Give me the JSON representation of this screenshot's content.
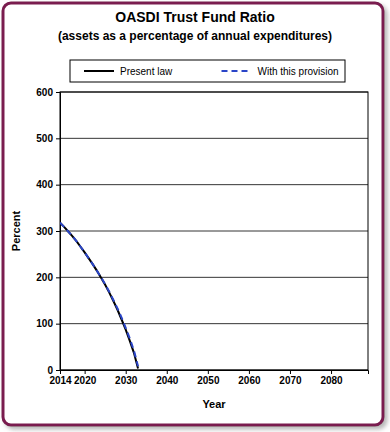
{
  "chart_data": {
    "type": "line",
    "title": "OASDI Trust Fund Ratio",
    "subtitle": "(assets as a percentage of annual expenditures)",
    "x_label": "Year",
    "y_label": "Percent",
    "x": [
      2014,
      2015,
      2016,
      2017,
      2018,
      2019,
      2020,
      2021,
      2022,
      2023,
      2024,
      2025,
      2026,
      2027,
      2028,
      2029,
      2030,
      2031,
      2032,
      2033
    ],
    "series": [
      {
        "name": "Present law",
        "color": "#000000",
        "line_style": "solid",
        "values": [
          318,
          309,
          299,
          289,
          278,
          266,
          254,
          241,
          228,
          214,
          199,
          184,
          167,
          149,
          130,
          109,
          87,
          63,
          37,
          3
        ]
      },
      {
        "name": "With this provision",
        "color": "#2a45c8",
        "line_style": "dashed",
        "values": [
          318,
          309,
          299,
          289,
          278,
          266,
          254,
          241,
          228,
          214,
          200,
          185,
          169,
          151,
          133,
          113,
          91,
          68,
          42,
          8
        ]
      }
    ],
    "xlim": [
      2014,
      2089
    ],
    "xticks": [
      2014,
      2020,
      2030,
      2040,
      2050,
      2060,
      2070,
      2080
    ],
    "ylim": [
      0,
      600
    ],
    "yticks": [
      0,
      100,
      200,
      300,
      400,
      500,
      600
    ],
    "grid": true,
    "legend": "top"
  }
}
